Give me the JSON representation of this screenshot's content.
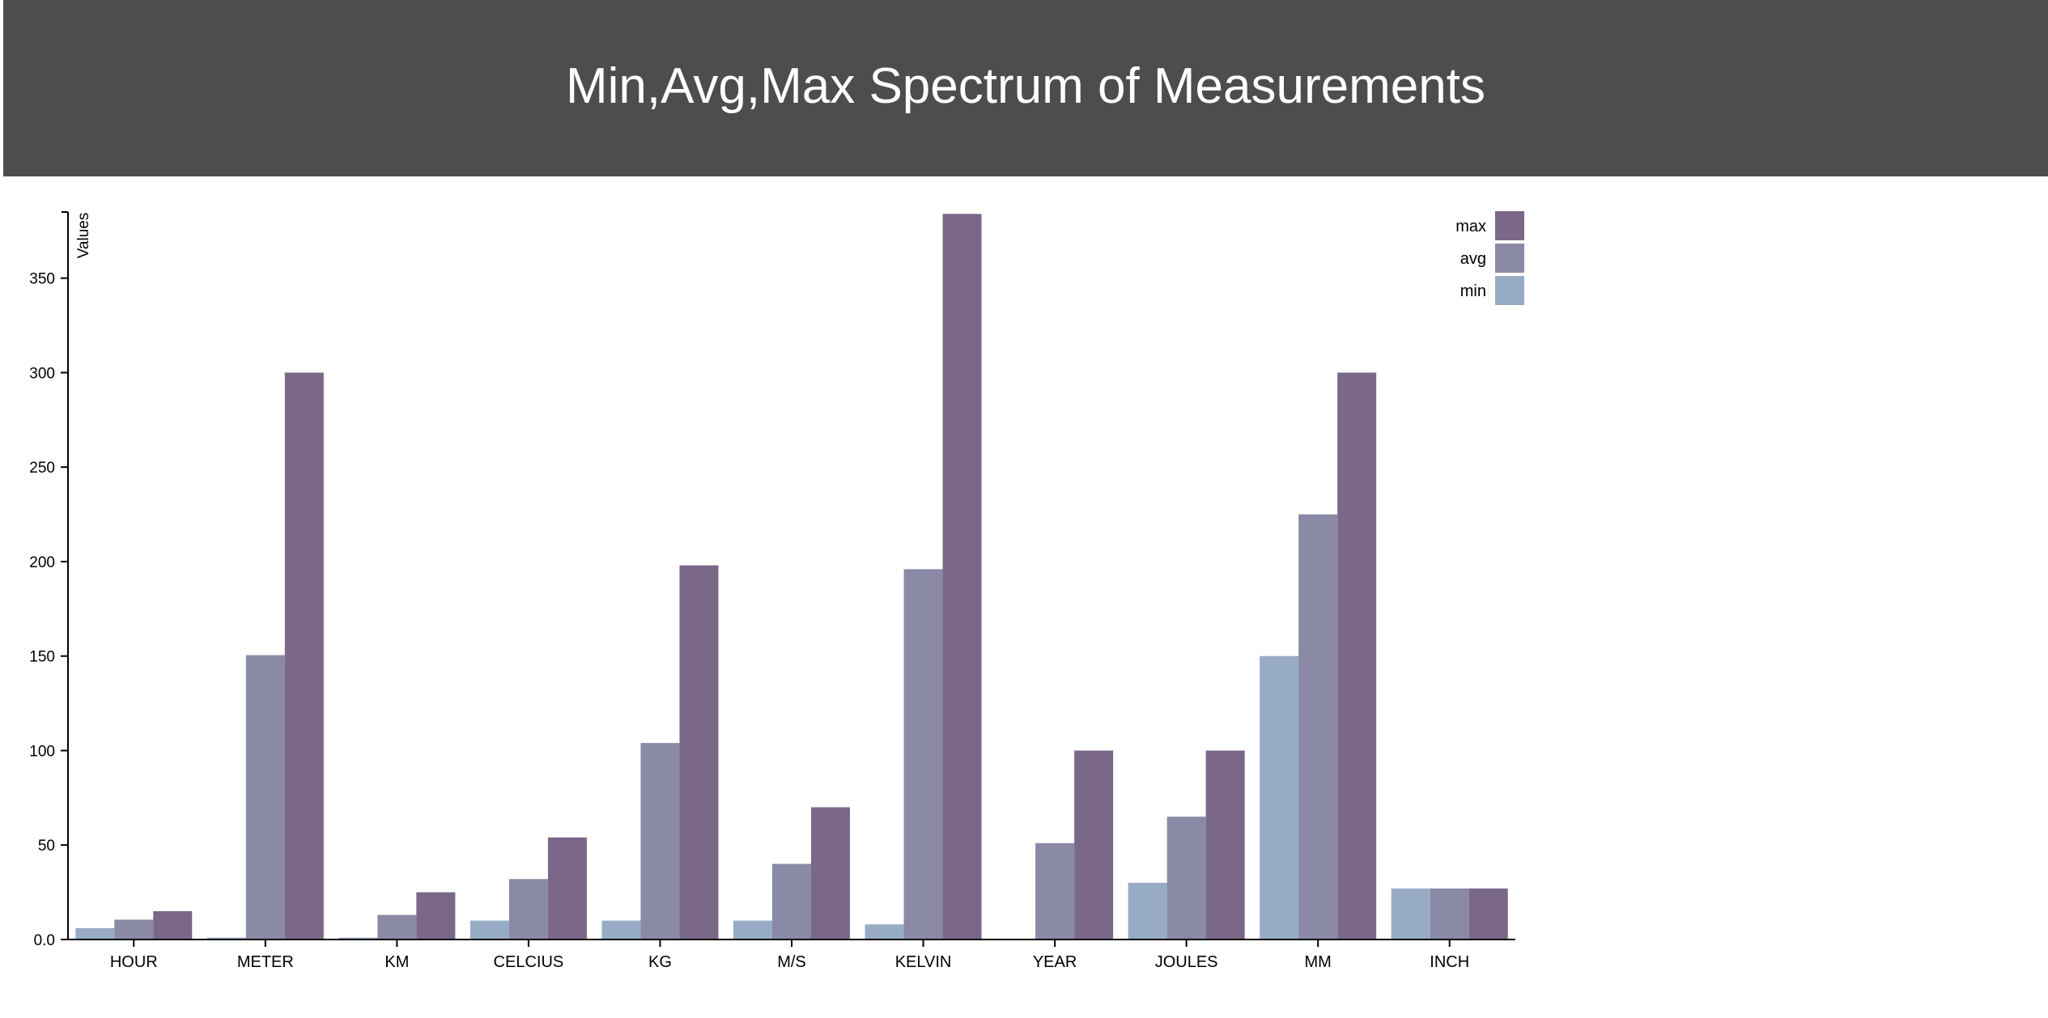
{
  "header": {
    "title": "Min,Avg,Max Spectrum of Measurements"
  },
  "colors": {
    "header_bg": "#4d4d4d",
    "min": "#98abc5",
    "avg": "#8a89a6",
    "max": "#7b6888"
  },
  "chart_data": {
    "type": "bar",
    "title": "Min,Avg,Max Spectrum of Measurements",
    "xlabel": "",
    "ylabel": "Values",
    "ylim": [
      0,
      385
    ],
    "yticks": [
      0.0,
      50,
      100,
      150,
      200,
      250,
      300,
      350
    ],
    "ytick_labels": [
      "0.0",
      "50",
      "100",
      "150",
      "200",
      "250",
      "300",
      "350"
    ],
    "grid": false,
    "legend_position": "top-right",
    "categories": [
      "HOUR",
      "METER",
      "KM",
      "CELCIUS",
      "KG",
      "M/S",
      "KELVIN",
      "YEAR",
      "JOULES",
      "MM",
      "INCH"
    ],
    "series": [
      {
        "name": "min",
        "values": [
          6,
          1,
          1,
          10,
          10,
          10,
          8,
          0,
          30,
          150,
          27
        ]
      },
      {
        "name": "avg",
        "values": [
          10.5,
          150.5,
          13,
          32,
          104,
          40,
          196,
          51,
          65,
          225,
          27
        ]
      },
      {
        "name": "max",
        "values": [
          15,
          300,
          25,
          54,
          198,
          70,
          384,
          100,
          100,
          300,
          27
        ]
      }
    ],
    "legend": [
      "max",
      "avg",
      "min"
    ]
  }
}
